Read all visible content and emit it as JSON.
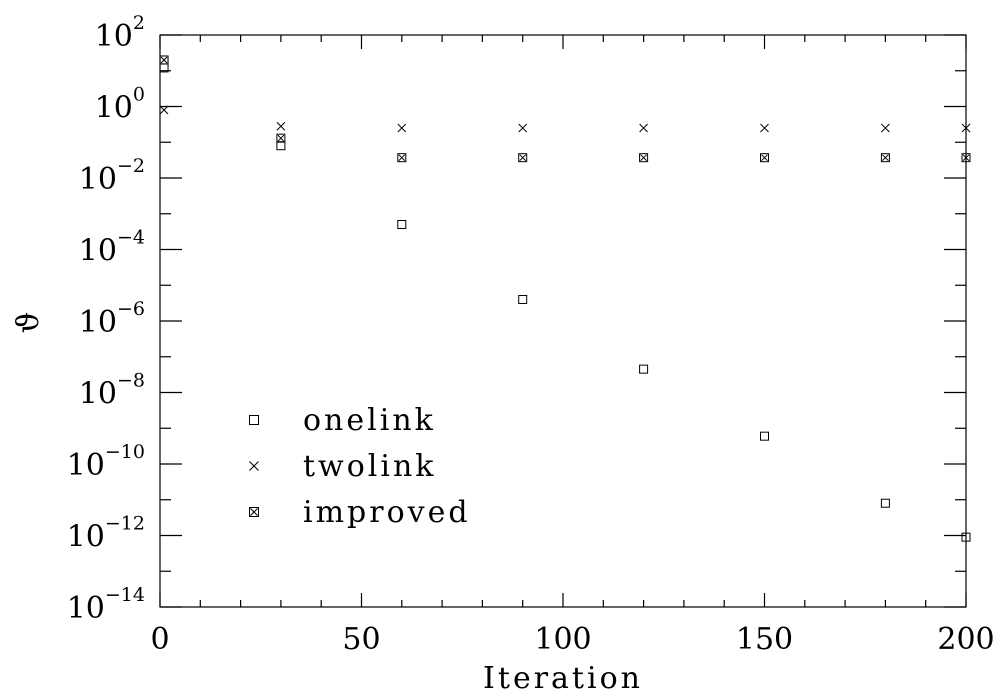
{
  "chart_data": {
    "type": "scatter",
    "xlabel": "Iteration",
    "ylabel": "ϑ",
    "xlim": [
      0,
      200
    ],
    "ylim": [
      1e-14,
      100.0
    ],
    "y_scale": "log",
    "grid": false,
    "legend_position": "bottom-left",
    "x_ticks": [
      "0",
      "50",
      "100",
      "150",
      "200"
    ],
    "y_ticks": [
      {
        "base": "10",
        "exp": "2",
        "value": 100.0
      },
      {
        "base": "10",
        "exp": "0",
        "value": 1
      },
      {
        "base": "10",
        "exp": "−2",
        "value": 0.01
      },
      {
        "base": "10",
        "exp": "−4",
        "value": 0.0001
      },
      {
        "base": "10",
        "exp": "−6",
        "value": 1e-06
      },
      {
        "base": "10",
        "exp": "−8",
        "value": 1e-08
      },
      {
        "base": "10",
        "exp": "−10",
        "value": 1e-10
      },
      {
        "base": "10",
        "exp": "−12",
        "value": 1e-12
      },
      {
        "base": "10",
        "exp": "−14",
        "value": 1e-14
      }
    ],
    "series": [
      {
        "name": "onelink",
        "marker": "square",
        "points": [
          {
            "x": 1,
            "y": 20
          },
          {
            "x": 1,
            "y": 12
          },
          {
            "x": 30,
            "y": 0.08
          },
          {
            "x": 60,
            "y": 0.0005
          },
          {
            "x": 90,
            "y": 4e-06
          },
          {
            "x": 120,
            "y": 4.5e-08
          },
          {
            "x": 150,
            "y": 6e-10
          },
          {
            "x": 180,
            "y": 8e-12
          },
          {
            "x": 200,
            "y": 9e-13
          }
        ]
      },
      {
        "name": "twolink",
        "marker": "cross",
        "points": [
          {
            "x": 1,
            "y": 0.8
          },
          {
            "x": 30,
            "y": 0.28
          },
          {
            "x": 60,
            "y": 0.25
          },
          {
            "x": 90,
            "y": 0.25
          },
          {
            "x": 120,
            "y": 0.25
          },
          {
            "x": 150,
            "y": 0.25
          },
          {
            "x": 180,
            "y": 0.25
          },
          {
            "x": 200,
            "y": 0.25
          }
        ]
      },
      {
        "name": "improved",
        "marker": "boxed-cross",
        "points": [
          {
            "x": 1,
            "y": 20
          },
          {
            "x": 30,
            "y": 0.13
          },
          {
            "x": 60,
            "y": 0.037
          },
          {
            "x": 90,
            "y": 0.037
          },
          {
            "x": 120,
            "y": 0.037
          },
          {
            "x": 150,
            "y": 0.037
          },
          {
            "x": 180,
            "y": 0.037
          },
          {
            "x": 200,
            "y": 0.037
          }
        ]
      }
    ]
  }
}
